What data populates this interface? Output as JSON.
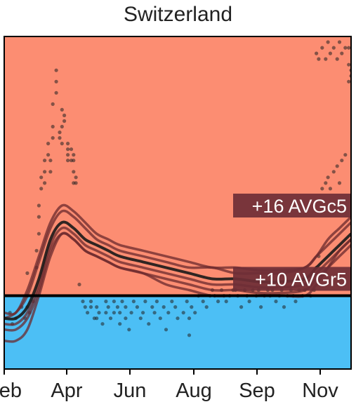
{
  "chart_data": {
    "type": "line",
    "title": "Switzerland",
    "xlabel": "",
    "ylabel": "",
    "x_ticks": [
      "Feb",
      "Apr",
      "Jun",
      "Aug",
      "Sep",
      "Nov"
    ],
    "x_range_days": [
      0,
      300
    ],
    "y_range": [
      -13,
      46
    ],
    "reference_line": 0,
    "colors": {
      "above": "#fc8d72",
      "below": "#4cbff5",
      "line": "#1a1a1a",
      "ensemble": "#6b2a2e",
      "annotation_bg": "#6e2e36",
      "points": "#222222"
    },
    "annotations": [
      {
        "text": "+16 AVGc5",
        "y": 16
      },
      {
        "text": "+10 AVGr5",
        "y": 3
      }
    ],
    "series": [
      {
        "role": "central",
        "x": [
          0,
          10,
          20,
          30,
          40,
          50,
          60,
          70,
          80,
          90,
          100,
          120,
          140,
          160,
          180,
          200,
          220,
          240,
          260,
          270,
          280,
          290,
          300
        ],
        "y": [
          -4,
          -4,
          -2,
          3,
          10,
          13,
          12,
          10,
          9,
          8,
          7,
          6,
          5,
          4,
          3,
          3,
          2.5,
          2.5,
          3,
          5,
          7,
          9,
          11
        ]
      },
      {
        "role": "ensemble",
        "x": [
          0,
          10,
          20,
          30,
          40,
          50,
          60,
          70,
          80,
          90,
          100,
          120,
          140,
          160,
          180,
          200,
          220,
          240,
          260,
          270,
          280,
          290,
          300
        ],
        "y": [
          -4,
          -3,
          0,
          6,
          12,
          15,
          14,
          12,
          10,
          9,
          8,
          7,
          6,
          5,
          5,
          4,
          4,
          4,
          5,
          7,
          9,
          11,
          13
        ]
      },
      {
        "role": "ensemble",
        "x": [
          0,
          10,
          20,
          30,
          40,
          50,
          60,
          70,
          80,
          90,
          100,
          120,
          140,
          160,
          180,
          200,
          220,
          240,
          260,
          270,
          280,
          290,
          300
        ],
        "y": [
          -5,
          -5,
          -3,
          2,
          9,
          12,
          11,
          9,
          8,
          7,
          6,
          5,
          4,
          3,
          2,
          2,
          1.5,
          1.5,
          2,
          4,
          6,
          8,
          10
        ]
      },
      {
        "role": "ensemble",
        "x": [
          0,
          10,
          20,
          30,
          40,
          50,
          60,
          70,
          80,
          90,
          100,
          120,
          140,
          160,
          180,
          200,
          220,
          240,
          260,
          270,
          280,
          290,
          300
        ],
        "y": [
          -6,
          -6,
          -4,
          1,
          8,
          11,
          10,
          8,
          7,
          6,
          5,
          4,
          3,
          2,
          1,
          1,
          0.5,
          0.5,
          1,
          3,
          5,
          7,
          9
        ]
      },
      {
        "role": "ensemble",
        "x": [
          0,
          10,
          20,
          30,
          40,
          50,
          60,
          70,
          80,
          90,
          100,
          120,
          140,
          160,
          180,
          200,
          220,
          240,
          260,
          270,
          280,
          290,
          300
        ],
        "y": [
          -8,
          -8,
          -6,
          0,
          7,
          11,
          10,
          8,
          7,
          6,
          5,
          4,
          2,
          1,
          0,
          0,
          0,
          0,
          0,
          2,
          5,
          8,
          10
        ]
      },
      {
        "role": "ensemble",
        "x": [
          0,
          10,
          20,
          30,
          40,
          50,
          60,
          70,
          80,
          90,
          100,
          120,
          140,
          160,
          180,
          200,
          220,
          240,
          260,
          270,
          280,
          290,
          300
        ],
        "y": [
          -3,
          -3,
          1,
          7,
          13,
          16,
          15,
          13,
          11,
          10,
          9,
          8,
          7,
          6,
          5,
          5,
          4.5,
          4.5,
          5,
          7,
          10,
          12,
          14
        ]
      }
    ],
    "points": [
      [
        5,
        -3
      ],
      [
        7,
        -5
      ],
      [
        10,
        -4
      ],
      [
        15,
        -2
      ],
      [
        18,
        -4
      ],
      [
        20,
        -2
      ],
      [
        20,
        0
      ],
      [
        20,
        4
      ],
      [
        22,
        -3
      ],
      [
        25,
        -1
      ],
      [
        28,
        5
      ],
      [
        28,
        8
      ],
      [
        30,
        11
      ],
      [
        30,
        14
      ],
      [
        30,
        16
      ],
      [
        32,
        19
      ],
      [
        32,
        21
      ],
      [
        35,
        20
      ],
      [
        35,
        22
      ],
      [
        35,
        24
      ],
      [
        38,
        25
      ],
      [
        38,
        27
      ],
      [
        40,
        22
      ],
      [
        40,
        24
      ],
      [
        42,
        28
      ],
      [
        42,
        30
      ],
      [
        42,
        34
      ],
      [
        45,
        36
      ],
      [
        45,
        38
      ],
      [
        45,
        40
      ],
      [
        48,
        28
      ],
      [
        48,
        29
      ],
      [
        50,
        27
      ],
      [
        50,
        30
      ],
      [
        50,
        33
      ],
      [
        52,
        31
      ],
      [
        52,
        32
      ],
      [
        55,
        24
      ],
      [
        55,
        25
      ],
      [
        55,
        26
      ],
      [
        55,
        27
      ],
      [
        58,
        24
      ],
      [
        58,
        26
      ],
      [
        60,
        20
      ],
      [
        60,
        22
      ],
      [
        60,
        24
      ],
      [
        60,
        25
      ],
      [
        62,
        20
      ],
      [
        62,
        21
      ],
      [
        65,
        2
      ],
      [
        68,
        -1
      ],
      [
        70,
        -2
      ],
      [
        72,
        -3
      ],
      [
        75,
        -1
      ],
      [
        75,
        -2
      ],
      [
        78,
        -4
      ],
      [
        80,
        -2
      ],
      [
        80,
        -4
      ],
      [
        82,
        -3
      ],
      [
        85,
        -5
      ],
      [
        88,
        -1
      ],
      [
        88,
        -3
      ],
      [
        90,
        -2
      ],
      [
        92,
        -4
      ],
      [
        95,
        -1
      ],
      [
        95,
        -3
      ],
      [
        98,
        -2
      ],
      [
        100,
        -5
      ],
      [
        100,
        -3
      ],
      [
        102,
        -1
      ],
      [
        105,
        -2
      ],
      [
        105,
        -4
      ],
      [
        108,
        -6
      ],
      [
        110,
        -3
      ],
      [
        112,
        -1
      ],
      [
        115,
        -2
      ],
      [
        118,
        -4
      ],
      [
        120,
        -3
      ],
      [
        122,
        -1
      ],
      [
        125,
        -5
      ],
      [
        128,
        -2
      ],
      [
        130,
        -3
      ],
      [
        132,
        -1
      ],
      [
        135,
        -4
      ],
      [
        138,
        -2
      ],
      [
        140,
        -6
      ],
      [
        142,
        -3
      ],
      [
        145,
        -1
      ],
      [
        148,
        -2
      ],
      [
        150,
        -4
      ],
      [
        155,
        -3
      ],
      [
        158,
        -1
      ],
      [
        160,
        -7
      ],
      [
        160,
        -4
      ],
      [
        162,
        -2
      ],
      [
        165,
        -3
      ],
      [
        168,
        0
      ],
      [
        172,
        -1
      ],
      [
        175,
        -2
      ],
      [
        178,
        0
      ],
      [
        180,
        1
      ],
      [
        182,
        0
      ],
      [
        185,
        -1
      ],
      [
        188,
        1
      ],
      [
        190,
        0
      ],
      [
        192,
        -1
      ],
      [
        195,
        0
      ],
      [
        198,
        1
      ],
      [
        200,
        1
      ],
      [
        202,
        0
      ],
      [
        205,
        -2
      ],
      [
        208,
        1
      ],
      [
        210,
        0
      ],
      [
        212,
        -1
      ],
      [
        215,
        1
      ],
      [
        218,
        0
      ],
      [
        220,
        1
      ],
      [
        222,
        -2
      ],
      [
        225,
        0
      ],
      [
        228,
        1
      ],
      [
        230,
        0
      ],
      [
        232,
        1
      ],
      [
        235,
        -1
      ],
      [
        238,
        0
      ],
      [
        240,
        1
      ],
      [
        242,
        -2
      ],
      [
        245,
        0
      ],
      [
        248,
        1
      ],
      [
        250,
        0
      ],
      [
        252,
        -1
      ],
      [
        255,
        1
      ],
      [
        258,
        0
      ],
      [
        260,
        1
      ],
      [
        262,
        2
      ],
      [
        265,
        0
      ],
      [
        268,
        1
      ],
      [
        270,
        5
      ],
      [
        272,
        7
      ],
      [
        275,
        19
      ],
      [
        278,
        20
      ],
      [
        280,
        21
      ],
      [
        282,
        19
      ],
      [
        285,
        22
      ],
      [
        288,
        23
      ],
      [
        290,
        20
      ],
      [
        292,
        24
      ],
      [
        295,
        25
      ],
      [
        298,
        44
      ],
      [
        270,
        43
      ],
      [
        272,
        42
      ],
      [
        275,
        44
      ],
      [
        278,
        42
      ],
      [
        280,
        45
      ],
      [
        282,
        43
      ],
      [
        285,
        44
      ],
      [
        288,
        42
      ],
      [
        290,
        45
      ],
      [
        292,
        43
      ],
      [
        295,
        44
      ],
      [
        298,
        41
      ],
      [
        300,
        40
      ],
      [
        300,
        39
      ],
      [
        298,
        38
      ]
    ]
  }
}
